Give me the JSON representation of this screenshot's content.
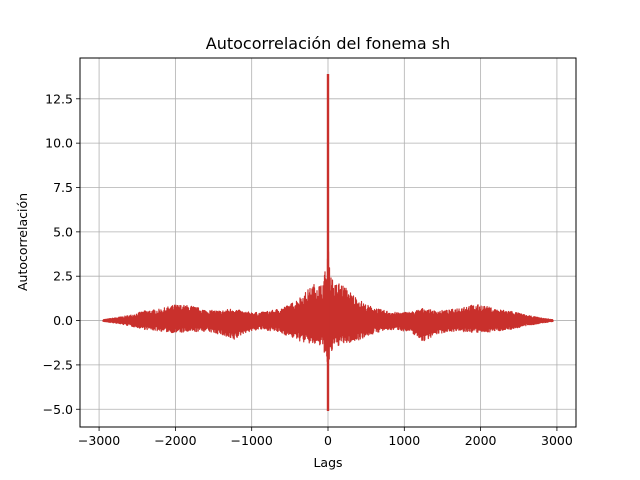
{
  "chart_data": {
    "type": "line",
    "title": "Autocorrelación del fonema sh",
    "xlabel": "Lags",
    "ylabel": "Autocorrelación",
    "xlim": [
      -3250,
      3250
    ],
    "ylim": [
      -6.0,
      14.8
    ],
    "xticks": [
      -3000,
      -2000,
      -1000,
      0,
      1000,
      2000,
      3000
    ],
    "xtick_labels": [
      "−3000",
      "−2000",
      "−1000",
      "0",
      "1000",
      "2000",
      "3000"
    ],
    "yticks": [
      -5.0,
      -2.5,
      0.0,
      2.5,
      5.0,
      7.5,
      10.0,
      12.5
    ],
    "ytick_labels": [
      "−5.0",
      "−2.5",
      "0.0",
      "2.5",
      "5.0",
      "7.5",
      "10.0",
      "12.5"
    ],
    "grid": true,
    "series": [
      {
        "color": "#c9302c",
        "x": [
          -2950,
          -2800,
          -2600,
          -2400,
          -2200,
          -2000,
          -1800,
          -1600,
          -1400,
          -1250,
          -1100,
          -900,
          -700,
          -500,
          -350,
          -250,
          -150,
          -80,
          -30,
          -10,
          -4,
          -2,
          0,
          2,
          4,
          10,
          30,
          80,
          150,
          250,
          350,
          500,
          700,
          900,
          1100,
          1250,
          1400,
          1600,
          1800,
          2000,
          2200,
          2400,
          2600,
          2800,
          2950
        ],
        "envelope_max": [
          0.05,
          0.15,
          0.3,
          0.55,
          0.65,
          0.9,
          0.85,
          0.6,
          0.55,
          0.7,
          0.5,
          0.45,
          0.6,
          0.9,
          1.4,
          1.8,
          2.2,
          2.0,
          3.0,
          3.0,
          5.0,
          7.5,
          13.9,
          7.5,
          5.0,
          3.0,
          3.0,
          2.0,
          2.2,
          1.8,
          1.4,
          0.9,
          0.6,
          0.45,
          0.5,
          0.7,
          0.55,
          0.6,
          0.85,
          0.9,
          0.65,
          0.55,
          0.3,
          0.15,
          0.05
        ],
        "envelope_min": [
          -0.05,
          -0.15,
          -0.3,
          -0.5,
          -0.6,
          -0.7,
          -0.65,
          -0.6,
          -0.8,
          -1.2,
          -0.7,
          -0.5,
          -0.6,
          -0.9,
          -1.2,
          -1.3,
          -1.4,
          -1.5,
          -2.0,
          -2.8,
          -3.5,
          -5.1,
          -5.1,
          -5.1,
          -3.5,
          -2.8,
          -2.0,
          -1.5,
          -1.4,
          -1.3,
          -1.2,
          -0.9,
          -0.6,
          -0.5,
          -0.7,
          -1.2,
          -0.8,
          -0.6,
          -0.65,
          -0.7,
          -0.6,
          -0.5,
          -0.3,
          -0.15,
          -0.05
        ]
      }
    ]
  }
}
